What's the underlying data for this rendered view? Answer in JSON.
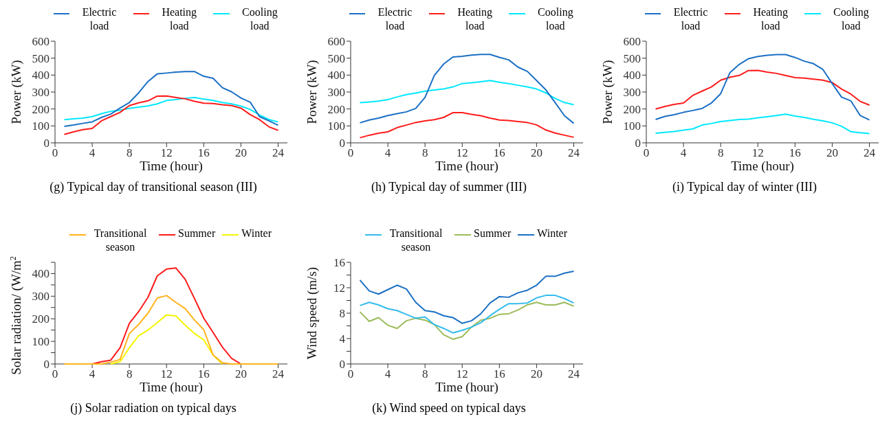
{
  "chart_data": [
    {
      "type": "line",
      "title": "(g) Typical day of transitional season (III)",
      "xlabel": "Time (hour)",
      "ylabel": "Power (kW)",
      "legend": "top",
      "x": [
        1,
        2,
        3,
        4,
        5,
        6,
        7,
        8,
        9,
        10,
        11,
        12,
        13,
        14,
        15,
        16,
        17,
        18,
        19,
        20,
        21,
        22,
        23,
        24
      ],
      "xlim": [
        0,
        25
      ],
      "xticks": [
        0,
        4,
        8,
        12,
        16,
        20,
        24
      ],
      "ylim": [
        0,
        600
      ],
      "yticks": [
        0,
        100,
        200,
        300,
        400,
        500,
        600
      ],
      "series": [
        {
          "name": "Electric load",
          "color": "#1a6fc4",
          "values": [
            97,
            105,
            115,
            124,
            150,
            170,
            205,
            238,
            295,
            362,
            407,
            412,
            418,
            421,
            421,
            393,
            381,
            326,
            301,
            265,
            240,
            155,
            130,
            104
          ]
        },
        {
          "name": "Heating load",
          "color": "#ff1a1a",
          "values": [
            50,
            65,
            78,
            85,
            130,
            155,
            180,
            220,
            236,
            248,
            276,
            277,
            268,
            260,
            245,
            234,
            232,
            225,
            220,
            205,
            167,
            137,
            95,
            74
          ]
        },
        {
          "name": "Cooling load",
          "color": "#00e8ff",
          "values": [
            137,
            142,
            146,
            155,
            172,
            186,
            193,
            204,
            211,
            218,
            230,
            250,
            255,
            263,
            268,
            258,
            250,
            238,
            230,
            217,
            197,
            165,
            138,
            123
          ]
        }
      ]
    },
    {
      "type": "line",
      "title": "(h) Typical day of summer (III)",
      "xlabel": "Time (hour)",
      "ylabel": "Power (kW)",
      "legend": "top",
      "x": [
        1,
        2,
        3,
        4,
        5,
        6,
        7,
        8,
        9,
        10,
        11,
        12,
        13,
        14,
        15,
        16,
        17,
        18,
        19,
        20,
        21,
        22,
        23,
        24
      ],
      "xlim": [
        0,
        25
      ],
      "xticks": [
        0,
        4,
        8,
        12,
        16,
        20,
        24
      ],
      "ylim": [
        0,
        600
      ],
      "yticks": [
        0,
        100,
        200,
        300,
        400,
        500,
        600
      ],
      "series": [
        {
          "name": "Electric load",
          "color": "#1a6fc4",
          "values": [
            118,
            135,
            146,
            161,
            172,
            183,
            203,
            268,
            398,
            465,
            507,
            511,
            518,
            522,
            522,
            505,
            490,
            447,
            422,
            368,
            313,
            238,
            160,
            115
          ]
        },
        {
          "name": "Heating load",
          "color": "#ff1a1a",
          "values": [
            30,
            45,
            57,
            65,
            90,
            105,
            120,
            130,
            137,
            150,
            178,
            178,
            168,
            160,
            146,
            135,
            132,
            126,
            120,
            106,
            76,
            58,
            45,
            33
          ]
        },
        {
          "name": "Cooling load",
          "color": "#00e8ff",
          "values": [
            237,
            241,
            246,
            255,
            271,
            285,
            294,
            305,
            312,
            318,
            330,
            350,
            355,
            361,
            368,
            358,
            350,
            340,
            330,
            318,
            295,
            262,
            238,
            225
          ]
        }
      ]
    },
    {
      "type": "line",
      "title": "(i) Typical day of winter (III)",
      "xlabel": "Time (hour)",
      "ylabel": "Power (kW)",
      "legend": "top",
      "x": [
        1,
        2,
        3,
        4,
        5,
        6,
        7,
        8,
        9,
        10,
        11,
        12,
        13,
        14,
        15,
        16,
        17,
        18,
        19,
        20,
        21,
        22,
        23,
        24
      ],
      "xlim": [
        0,
        25
      ],
      "xticks": [
        0,
        4,
        8,
        12,
        16,
        20,
        24
      ],
      "ylim": [
        0,
        600
      ],
      "yticks": [
        0,
        100,
        200,
        300,
        400,
        500,
        600
      ],
      "series": [
        {
          "name": "Electric load",
          "color": "#1a6fc4",
          "values": [
            138,
            156,
            166,
            180,
            191,
            203,
            235,
            290,
            415,
            463,
            497,
            510,
            517,
            521,
            521,
            504,
            482,
            467,
            433,
            350,
            270,
            248,
            162,
            135
          ]
        },
        {
          "name": "Heating load",
          "color": "#ff1a1a",
          "values": [
            200,
            215,
            227,
            235,
            280,
            305,
            330,
            370,
            387,
            398,
            427,
            428,
            418,
            410,
            397,
            385,
            382,
            376,
            370,
            356,
            318,
            288,
            245,
            223
          ]
        },
        {
          "name": "Cooling load",
          "color": "#00e8ff",
          "values": [
            57,
            62,
            67,
            75,
            82,
            105,
            114,
            126,
            132,
            138,
            140,
            148,
            154,
            161,
            169,
            158,
            150,
            139,
            130,
            118,
            98,
            66,
            60,
            55
          ]
        }
      ]
    },
    {
      "type": "line",
      "title": "(j) Solar radiation on typical days",
      "xlabel": "Time (hour)",
      "ylabel": "Solar radiation/ (W/m$^{2}$)",
      "legend": "top",
      "x": [
        1,
        2,
        3,
        4,
        5,
        6,
        7,
        8,
        9,
        10,
        11,
        12,
        13,
        14,
        15,
        16,
        17,
        18,
        19,
        20,
        21,
        22,
        23,
        24
      ],
      "xlim": [
        0,
        25
      ],
      "xticks": [
        0,
        4,
        8,
        12,
        16,
        20,
        24
      ],
      "ylim": [
        0,
        450
      ],
      "yticks": [
        0,
        {
          "value": 50,
          "label": null
        },
        100,
        {
          "value": 150,
          "label": null
        },
        200,
        {
          "value": 250,
          "label": null
        },
        300,
        {
          "value": 350,
          "label": null
        },
        400,
        {
          "value": 450,
          "label": null
        }
      ],
      "series": [
        {
          "name": "Transitional season",
          "color": "#ffb31a",
          "values": [
            0,
            0,
            0,
            0,
            0,
            8,
            20,
            135,
            175,
            225,
            292,
            303,
            273,
            245,
            195,
            152,
            40,
            5,
            0,
            0,
            0,
            0,
            0,
            0
          ]
        },
        {
          "name": "Summer",
          "color": "#ff1a1a",
          "values": [
            null,
            null,
            null,
            0,
            10,
            17,
            72,
            180,
            232,
            295,
            390,
            420,
            425,
            375,
            290,
            203,
            140,
            75,
            25,
            0,
            null,
            null,
            null,
            null
          ]
        },
        {
          "name": "Winter",
          "color": "#f5f500",
          "values": [
            null,
            null,
            null,
            null,
            null,
            0,
            10,
            72,
            125,
            150,
            183,
            217,
            213,
            172,
            135,
            107,
            40,
            0,
            null,
            null,
            null,
            null,
            null,
            null
          ]
        }
      ]
    },
    {
      "type": "line",
      "title": "(k) Wind speed on typical days",
      "xlabel": "Time (hour)",
      "ylabel": "Wind speed (m/s)",
      "legend": "top",
      "x": [
        1,
        2,
        3,
        4,
        5,
        6,
        7,
        8,
        9,
        10,
        11,
        12,
        13,
        14,
        15,
        16,
        17,
        18,
        19,
        20,
        21,
        22,
        23,
        24
      ],
      "xlim": [
        0,
        25
      ],
      "xticks": [
        0,
        4,
        8,
        12,
        16,
        20,
        24
      ],
      "ylim": [
        0,
        16
      ],
      "yticks": [
        0,
        {
          "value": 2,
          "label": null
        },
        4,
        {
          "value": 6,
          "label": null
        },
        8,
        {
          "value": 10,
          "label": null
        },
        12,
        {
          "value": 14,
          "label": null
        },
        16
      ],
      "series": [
        {
          "name": "Transitional season",
          "color": "#33bbee",
          "values": [
            9.2,
            9.7,
            9.3,
            8.7,
            8.4,
            7.8,
            7.2,
            7.4,
            6.2,
            5.6,
            4.9,
            5.3,
            5.8,
            6.5,
            7.6,
            8.6,
            9.5,
            9.5,
            9.6,
            10.4,
            10.8,
            10.8,
            10.3,
            9.6
          ]
        },
        {
          "name": "Summer",
          "color": "#9bbb59",
          "values": [
            8.2,
            6.7,
            7.3,
            6.1,
            5.6,
            6.8,
            7.2,
            6.9,
            6.2,
            4.6,
            3.9,
            4.3,
            5.8,
            6.9,
            7.2,
            7.8,
            7.9,
            8.5,
            9.3,
            9.7,
            9.3,
            9.3,
            9.7,
            9.1
          ]
        },
        {
          "name": "Winter",
          "color": "#1a6fc4",
          "values": [
            13.2,
            11.5,
            11.0,
            11.7,
            12.4,
            11.8,
            9.7,
            8.4,
            8.2,
            7.6,
            7.3,
            6.4,
            6.8,
            7.9,
            9.6,
            10.6,
            10.5,
            11.2,
            11.6,
            12.4,
            13.8,
            13.8,
            14.3,
            14.6
          ]
        }
      ]
    }
  ]
}
